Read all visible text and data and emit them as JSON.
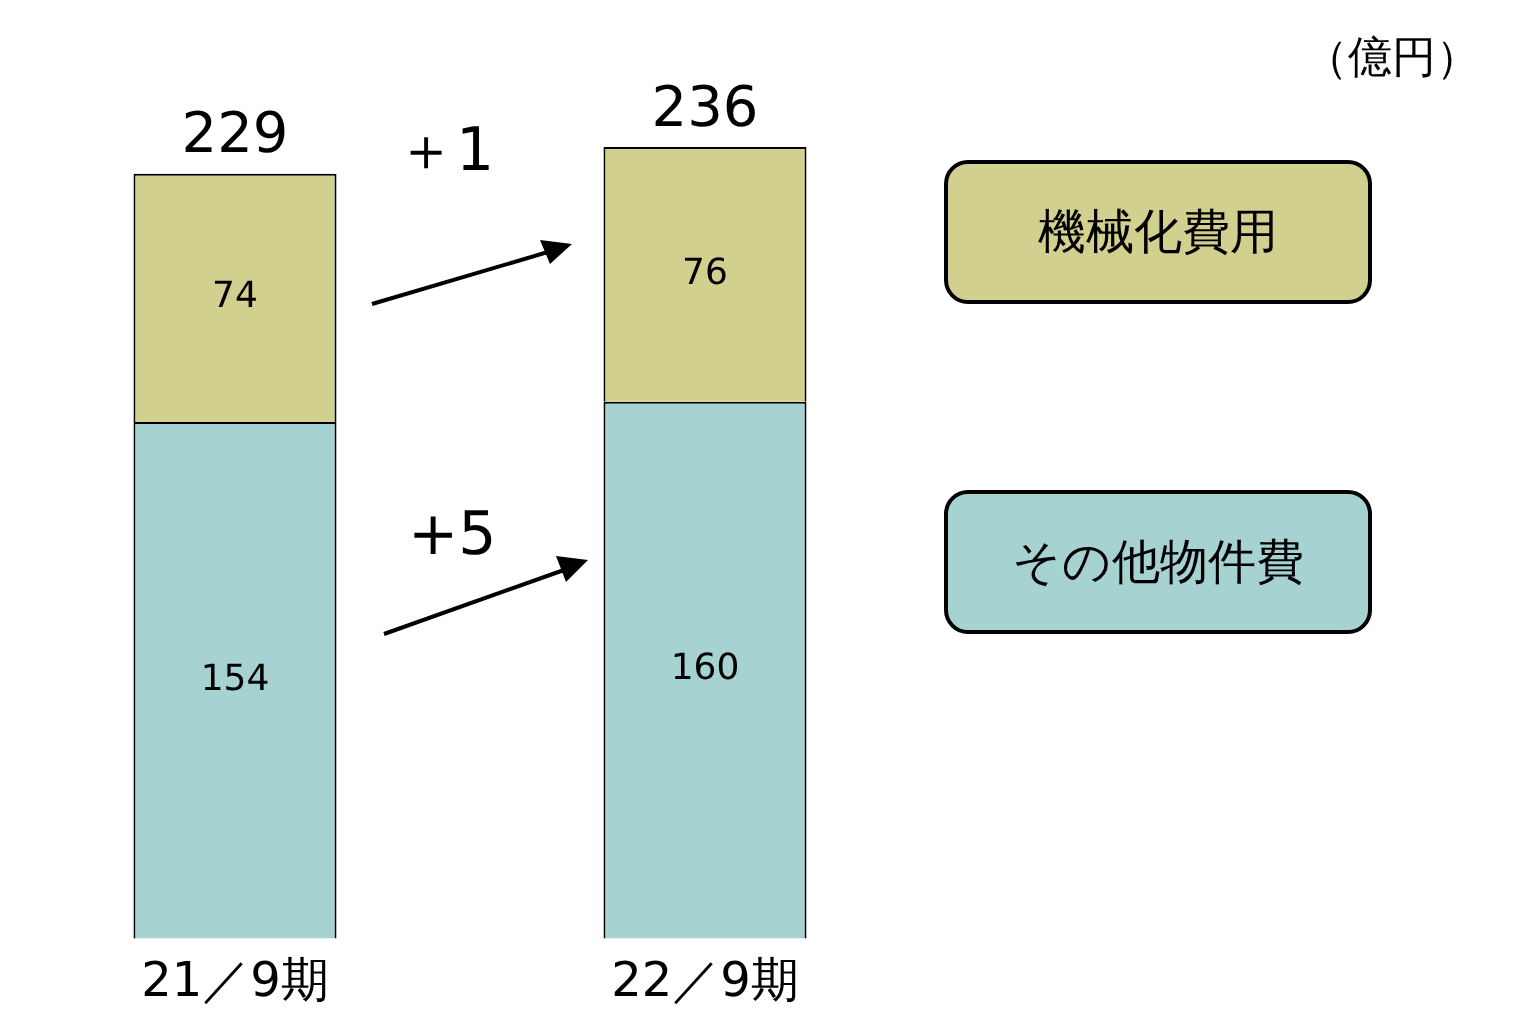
{
  "chart_data": {
    "type": "bar",
    "stacked": true,
    "categories": [
      "21／9期",
      "22／9期"
    ],
    "series": [
      {
        "name": "その他物件費",
        "color": "#a6d2d2",
        "values": [
          154,
          160
        ]
      },
      {
        "name": "機械化費用",
        "color": "#d2d08e",
        "values": [
          74,
          76
        ]
      }
    ],
    "data_labels": true,
    "totals": [
      "229",
      "236"
    ],
    "legend": "right",
    "tick_labels": "x",
    "annotations": [
      "＋1",
      "+5",
      "（億円）"
    ]
  }
}
